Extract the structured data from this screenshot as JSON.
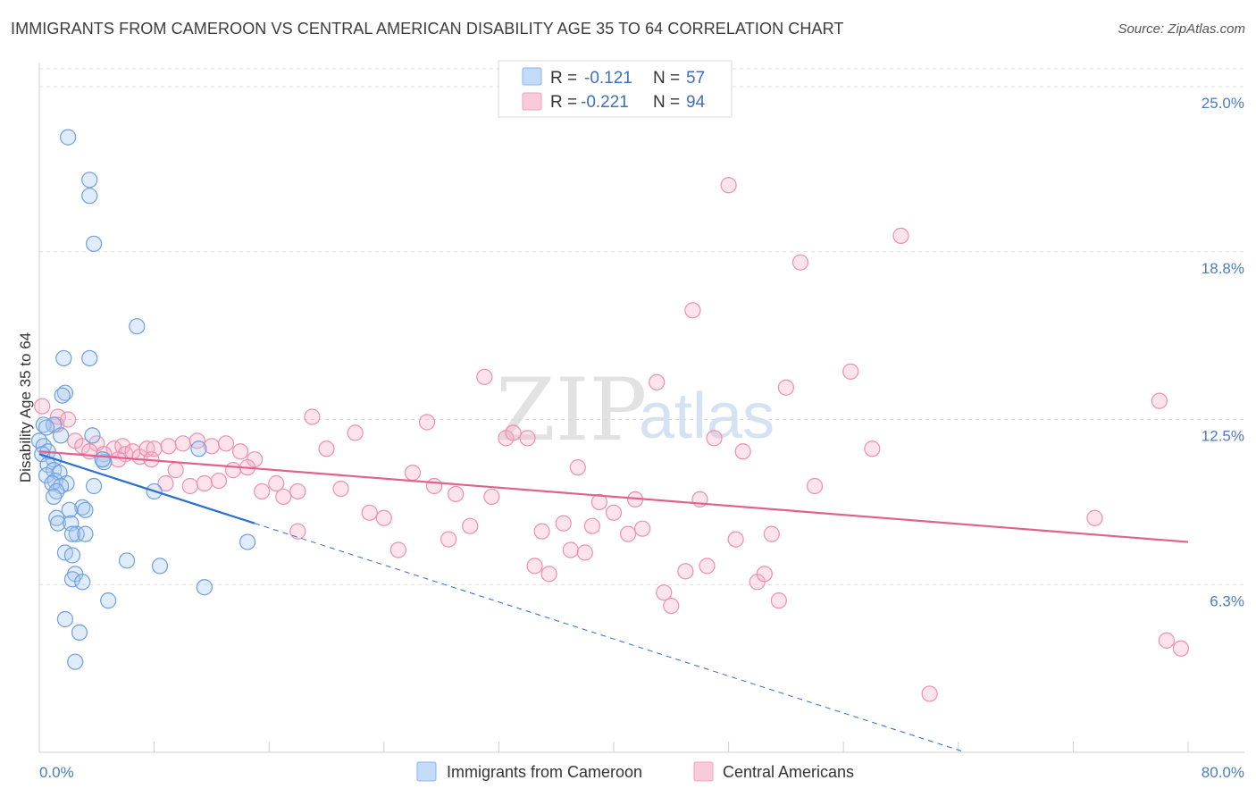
{
  "header": {
    "title": "IMMIGRANTS FROM CAMEROON VS CENTRAL AMERICAN DISABILITY AGE 35 TO 64 CORRELATION CHART",
    "source": "Source: ZipAtlas.com"
  },
  "watermark": {
    "part1": "ZIP",
    "part2": "atlas"
  },
  "legend": {
    "r_label": "R =",
    "n_label": "N =",
    "rows": [
      {
        "r": "-0.121",
        "n": "57",
        "color": "#8ab4f0"
      },
      {
        "r": "-0.221",
        "n": "94",
        "color": "#f5a0bc"
      }
    ]
  },
  "bottom_legend": [
    {
      "label": "Immigrants from Cameroon",
      "color": "#8ab4f0"
    },
    {
      "label": "Central Americans",
      "color": "#f5a0bc"
    }
  ],
  "colors": {
    "blue": "#4a86d8",
    "pink": "#e8739a",
    "blue_line": "#2b6fd0",
    "pink_line": "#e2608e",
    "tick_text": "#4a7cc4"
  },
  "chart_data": {
    "type": "scatter",
    "title": "IMMIGRANTS FROM CAMEROON VS CENTRAL AMERICAN DISABILITY AGE 35 TO 64 CORRELATION CHART",
    "xlabel": "",
    "ylabel": "Disability Age 35 to 64",
    "xlim": [
      0,
      80
    ],
    "ylim": [
      0,
      26
    ],
    "x_tick_labels": [
      "0.0%",
      "80.0%"
    ],
    "y_ticks": [
      6.3,
      12.5,
      18.8,
      25.0
    ],
    "y_tick_labels": [
      "6.3%",
      "12.5%",
      "18.8%",
      "25.0%"
    ],
    "grid": "horizontal dashed",
    "series": [
      {
        "name": "Immigrants from Cameroon",
        "R": -0.121,
        "N": 57,
        "trend": {
          "x0": 0,
          "y0": 11.2,
          "x1": 15,
          "y1": 8.6,
          "dashed_to_x": 64.5,
          "dashed_to_y": 0
        },
        "points": [
          [
            2.0,
            23.1
          ],
          [
            3.5,
            21.5
          ],
          [
            3.5,
            20.9
          ],
          [
            3.8,
            19.1
          ],
          [
            6.8,
            16.0
          ],
          [
            1.7,
            14.8
          ],
          [
            3.5,
            14.8
          ],
          [
            1.8,
            13.5
          ],
          [
            1.6,
            13.4
          ],
          [
            0.3,
            12.3
          ],
          [
            1.0,
            12.3
          ],
          [
            0.5,
            12.2
          ],
          [
            3.7,
            11.9
          ],
          [
            1.5,
            11.9
          ],
          [
            0.0,
            11.7
          ],
          [
            0.3,
            11.5
          ],
          [
            0.6,
            11.3
          ],
          [
            0.2,
            11.2
          ],
          [
            1.0,
            11.0
          ],
          [
            4.4,
            11.0
          ],
          [
            4.5,
            10.9
          ],
          [
            0.6,
            10.8
          ],
          [
            1.0,
            10.6
          ],
          [
            1.4,
            10.5
          ],
          [
            0.5,
            10.4
          ],
          [
            1.1,
            10.2
          ],
          [
            0.9,
            10.1
          ],
          [
            1.9,
            10.1
          ],
          [
            3.8,
            10.0
          ],
          [
            1.5,
            10.0
          ],
          [
            1.2,
            9.8
          ],
          [
            8.0,
            9.8
          ],
          [
            1.0,
            9.6
          ],
          [
            3.0,
            9.2
          ],
          [
            2.1,
            9.1
          ],
          [
            3.2,
            9.1
          ],
          [
            1.2,
            8.8
          ],
          [
            1.3,
            8.6
          ],
          [
            2.2,
            8.6
          ],
          [
            2.6,
            8.2
          ],
          [
            2.3,
            8.2
          ],
          [
            3.2,
            8.2
          ],
          [
            14.5,
            7.9
          ],
          [
            1.8,
            7.5
          ],
          [
            2.3,
            7.4
          ],
          [
            6.1,
            7.2
          ],
          [
            8.4,
            7.0
          ],
          [
            2.5,
            6.7
          ],
          [
            2.3,
            6.5
          ],
          [
            3.0,
            6.4
          ],
          [
            11.5,
            6.2
          ],
          [
            4.8,
            5.7
          ],
          [
            1.8,
            5.0
          ],
          [
            2.8,
            4.5
          ],
          [
            2.5,
            3.4
          ],
          [
            11.1,
            11.4
          ],
          [
            4.4,
            11.0
          ]
        ]
      },
      {
        "name": "Central Americans",
        "R": -0.221,
        "N": 94,
        "trend": {
          "x0": 0,
          "y0": 11.3,
          "x1": 80,
          "y1": 7.9
        },
        "points": [
          [
            0.2,
            13.0
          ],
          [
            1.3,
            12.6
          ],
          [
            1.2,
            12.3
          ],
          [
            2.5,
            11.7
          ],
          [
            3.0,
            11.5
          ],
          [
            4.0,
            11.6
          ],
          [
            5.2,
            11.4
          ],
          [
            5.8,
            11.5
          ],
          [
            6.0,
            11.2
          ],
          [
            6.5,
            11.3
          ],
          [
            7.0,
            11.1
          ],
          [
            7.5,
            11.4
          ],
          [
            8.0,
            11.4
          ],
          [
            9.0,
            11.5
          ],
          [
            10.0,
            11.6
          ],
          [
            11.0,
            11.7
          ],
          [
            12.0,
            11.5
          ],
          [
            13.0,
            11.6
          ],
          [
            14.0,
            11.3
          ],
          [
            15.0,
            11.0
          ],
          [
            2.0,
            12.5
          ],
          [
            3.5,
            11.3
          ],
          [
            4.5,
            11.2
          ],
          [
            5.5,
            11.0
          ],
          [
            7.8,
            11.0
          ],
          [
            9.5,
            10.6
          ],
          [
            10.5,
            10.0
          ],
          [
            11.5,
            10.1
          ],
          [
            12.5,
            10.2
          ],
          [
            13.5,
            10.6
          ],
          [
            14.5,
            10.7
          ],
          [
            15.5,
            9.8
          ],
          [
            16.5,
            10.1
          ],
          [
            17.0,
            9.6
          ],
          [
            18.0,
            9.8
          ],
          [
            19.0,
            12.6
          ],
          [
            20.0,
            11.4
          ],
          [
            21.0,
            9.9
          ],
          [
            22.0,
            12.0
          ],
          [
            23.0,
            9.0
          ],
          [
            24.0,
            8.8
          ],
          [
            25.0,
            7.6
          ],
          [
            26.0,
            10.5
          ],
          [
            27.0,
            12.4
          ],
          [
            27.5,
            10.0
          ],
          [
            28.5,
            8.0
          ],
          [
            29.0,
            9.7
          ],
          [
            30.0,
            8.5
          ],
          [
            31.0,
            14.1
          ],
          [
            31.5,
            9.6
          ],
          [
            32.5,
            11.8
          ],
          [
            33.0,
            12.0
          ],
          [
            34.0,
            11.8
          ],
          [
            34.5,
            7.0
          ],
          [
            35.0,
            8.3
          ],
          [
            35.5,
            6.7
          ],
          [
            36.5,
            8.6
          ],
          [
            37.0,
            7.6
          ],
          [
            37.5,
            10.7
          ],
          [
            38.0,
            7.5
          ],
          [
            38.5,
            8.5
          ],
          [
            39.0,
            9.4
          ],
          [
            40.0,
            9.0
          ],
          [
            41.0,
            8.2
          ],
          [
            41.5,
            9.5
          ],
          [
            42.0,
            8.4
          ],
          [
            43.0,
            13.9
          ],
          [
            43.5,
            6.0
          ],
          [
            44.0,
            5.5
          ],
          [
            45.0,
            6.8
          ],
          [
            45.5,
            16.6
          ],
          [
            46.0,
            9.5
          ],
          [
            46.5,
            7.0
          ],
          [
            47.0,
            11.8
          ],
          [
            48.0,
            21.3
          ],
          [
            48.5,
            8.0
          ],
          [
            49.0,
            11.3
          ],
          [
            50.0,
            6.4
          ],
          [
            50.5,
            6.7
          ],
          [
            51.0,
            8.2
          ],
          [
            51.5,
            5.7
          ],
          [
            52.0,
            13.7
          ],
          [
            53.0,
            18.4
          ],
          [
            54.0,
            10.0
          ],
          [
            56.5,
            14.3
          ],
          [
            58.0,
            11.4
          ],
          [
            60.0,
            19.4
          ],
          [
            62.0,
            2.2
          ],
          [
            73.5,
            8.8
          ],
          [
            78.0,
            13.2
          ],
          [
            78.5,
            4.2
          ],
          [
            79.5,
            3.9
          ],
          [
            8.8,
            10.1
          ],
          [
            18.0,
            8.3
          ]
        ]
      }
    ]
  }
}
